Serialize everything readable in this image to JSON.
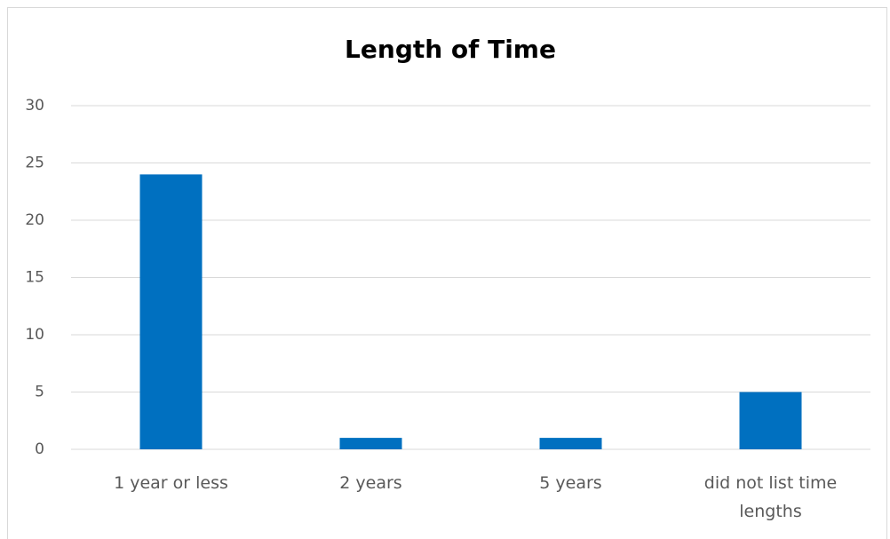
{
  "chart_data": {
    "type": "bar",
    "title": "Length of Time",
    "categories": [
      "1 year or less",
      "2 years",
      "5 years",
      "did not list time lengths"
    ],
    "values": [
      24,
      1,
      1,
      5
    ],
    "color": "#0070c0",
    "ylim": [
      0,
      30
    ],
    "yticks": [
      0,
      5,
      10,
      15,
      20,
      25,
      30
    ],
    "grid": true
  }
}
